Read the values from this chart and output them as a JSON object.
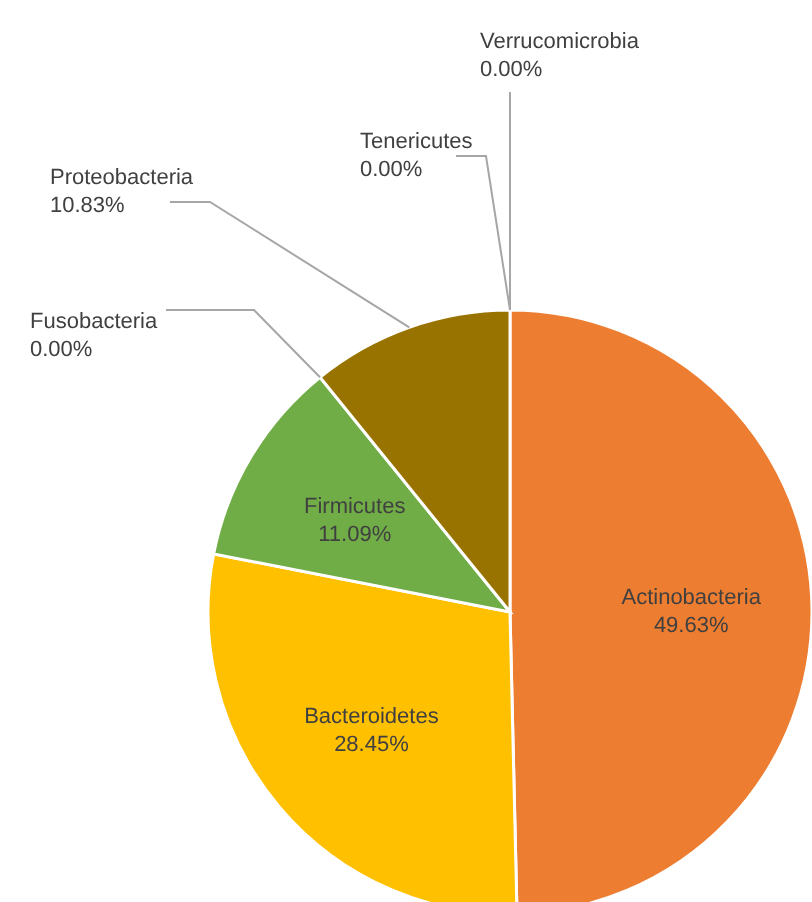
{
  "chart_data": {
    "type": "pie",
    "categories": [
      "Actinobacteria",
      "Bacteroidetes",
      "Firmicutes",
      "Fusobacteria",
      "Proteobacteria",
      "Tenericutes",
      "Verrucomicrobia"
    ],
    "values": [
      49.63,
      28.45,
      11.09,
      0.0,
      10.83,
      0.0,
      0.0
    ],
    "colors": [
      "#ed7d31",
      "#ffc000",
      "#70ad47",
      "#264478",
      "#997300",
      "#636363",
      "#9e480e"
    ],
    "value_labels": [
      "49.63%",
      "28.45%",
      "11.09%",
      "0.00%",
      "10.83%",
      "0.00%",
      "0.00%"
    ],
    "legend": false
  }
}
